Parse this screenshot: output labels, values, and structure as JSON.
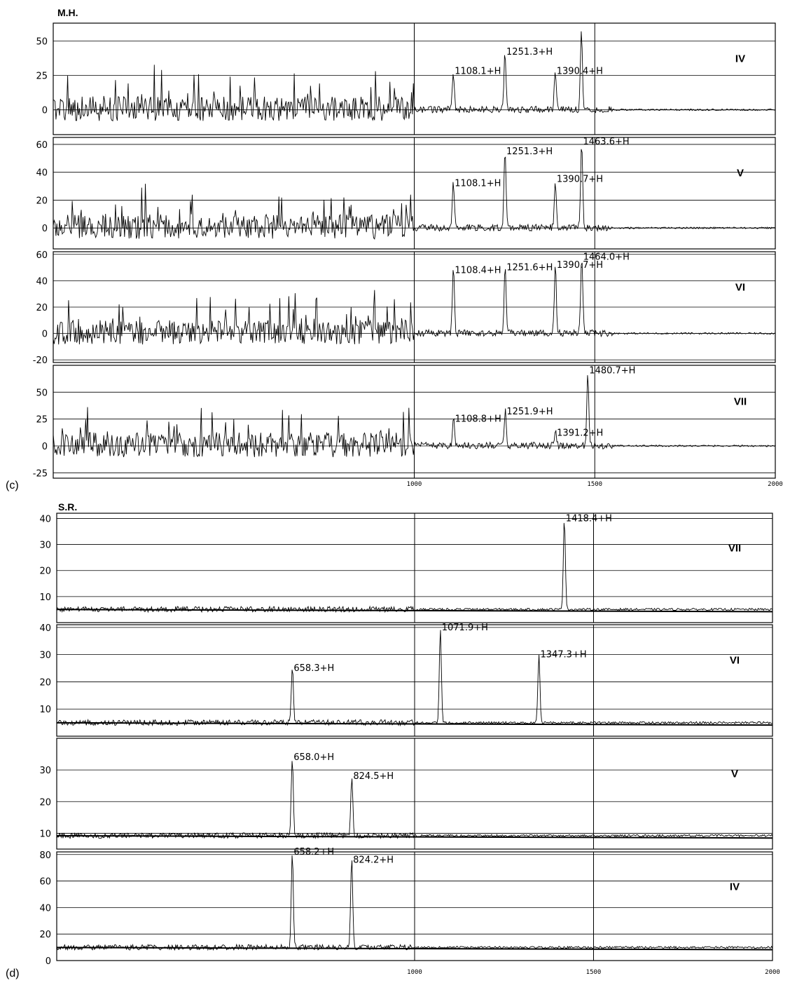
{
  "chart_data": [
    {
      "type": "line",
      "title": "M.H.",
      "panel_label": "(c)",
      "xlim": [
        0,
        2000
      ],
      "x_ticks": [
        "1000",
        "1500",
        "2000"
      ],
      "subplots": [
        {
          "tag": "IV",
          "ylim": [
            -18,
            63
          ],
          "y_ticks": [
            0,
            25,
            50
          ],
          "peaks": [
            {
              "x": 1108.1,
              "y": 28,
              "label": "1108.1+H"
            },
            {
              "x": 1251.3,
              "y": 42,
              "label": "1251.3+H"
            },
            {
              "x": 1390.4,
              "y": 28,
              "label": "1390.4+H"
            },
            {
              "x": 1463,
              "y": 57,
              "label": ""
            }
          ]
        },
        {
          "tag": "V",
          "ylim": [
            -15,
            65
          ],
          "y_ticks": [
            0,
            20,
            40,
            60
          ],
          "peaks": [
            {
              "x": 1108.1,
              "y": 32,
              "label": "1108.1+H"
            },
            {
              "x": 1251.3,
              "y": 55,
              "label": "1251.3+H"
            },
            {
              "x": 1390.7,
              "y": 35,
              "label": "1390.7+H"
            },
            {
              "x": 1463.6,
              "y": 62,
              "label": "1463.6+H"
            }
          ]
        },
        {
          "tag": "VI",
          "ylim": [
            -22,
            62
          ],
          "y_ticks": [
            -20,
            0,
            20,
            40,
            60
          ],
          "peaks": [
            {
              "x": 1108.4,
              "y": 48,
              "label": "1108.4+H"
            },
            {
              "x": 1251.6,
              "y": 50,
              "label": "1251.6+H"
            },
            {
              "x": 1390.7,
              "y": 52,
              "label": "1390.7+H"
            },
            {
              "x": 1464.0,
              "y": 58,
              "label": "1464.0+H"
            }
          ]
        },
        {
          "tag": "VII",
          "ylim": [
            -30,
            75
          ],
          "y_ticks": [
            -25,
            0,
            25,
            50
          ],
          "peaks": [
            {
              "x": 1108.8,
              "y": 25,
              "label": "1108.8+H"
            },
            {
              "x": 1251.9,
              "y": 32,
              "label": "1251.9+H"
            },
            {
              "x": 1391.2,
              "y": 12,
              "label": "1391.2+H"
            },
            {
              "x": 1480.7,
              "y": 70,
              "label": "1480.7+H"
            }
          ]
        }
      ]
    },
    {
      "type": "line",
      "title": "S.R.",
      "panel_label": "(d)",
      "xlim": [
        0,
        2000
      ],
      "x_ticks": [
        "1000",
        "1500",
        "2000"
      ],
      "subplots": [
        {
          "tag": "VII",
          "ylim": [
            0,
            42
          ],
          "y_ticks": [
            10,
            20,
            30,
            40
          ],
          "peaks": [
            {
              "x": 1418.4,
              "y": 40,
              "label": "1418.4+H"
            }
          ]
        },
        {
          "tag": "VI",
          "ylim": [
            0,
            41
          ],
          "y_ticks": [
            10,
            20,
            30,
            40
          ],
          "peaks": [
            {
              "x": 658.3,
              "y": 25,
              "label": "658.3+H"
            },
            {
              "x": 1071.9,
              "y": 40,
              "label": "1071.9+H"
            },
            {
              "x": 1347.3,
              "y": 30,
              "label": "1347.3+H"
            }
          ]
        },
        {
          "tag": "V",
          "ylim": [
            5,
            40
          ],
          "y_ticks": [
            10,
            20,
            30
          ],
          "peaks": [
            {
              "x": 658.0,
              "y": 34,
              "label": "658.0+H"
            },
            {
              "x": 824.5,
              "y": 28,
              "label": "824.5+H"
            }
          ]
        },
        {
          "tag": "IV",
          "ylim": [
            0,
            82
          ],
          "y_ticks": [
            0,
            20,
            40,
            60,
            80
          ],
          "peaks": [
            {
              "x": 658.2,
              "y": 82,
              "label": "658.2+H"
            },
            {
              "x": 824.2,
              "y": 76,
              "label": "824.2+H"
            }
          ]
        }
      ]
    }
  ]
}
